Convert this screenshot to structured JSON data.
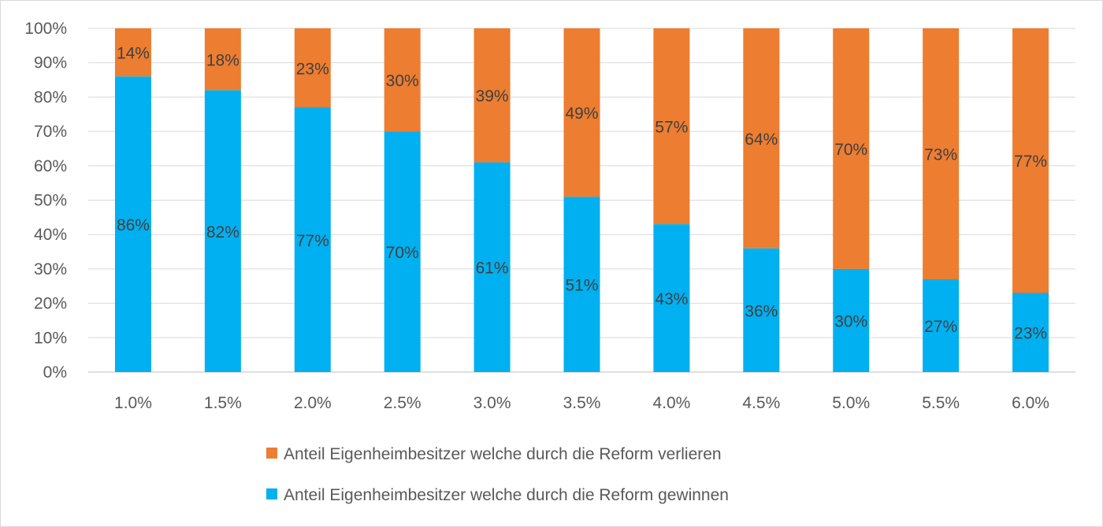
{
  "chart_data": {
    "type": "bar",
    "stacked": true,
    "percent_stacked": true,
    "categories": [
      "1.0%",
      "1.5%",
      "2.0%",
      "2.5%",
      "3.0%",
      "3.5%",
      "4.0%",
      "4.5%",
      "5.0%",
      "5.5%",
      "6.0%"
    ],
    "series": [
      {
        "name": "Anteil Eigenheimbesitzer welche durch die Reform gewinnen",
        "color": "#00b0f0",
        "values": [
          86,
          82,
          77,
          70,
          61,
          51,
          43,
          36,
          30,
          27,
          23
        ],
        "labels": [
          "86%",
          "82%",
          "77%",
          "70%",
          "61%",
          "51%",
          "43%",
          "36%",
          "30%",
          "27%",
          "23%"
        ]
      },
      {
        "name": "Anteil Eigenheimbesitzer welche durch die Reform verlieren",
        "color": "#ed7d31",
        "values": [
          14,
          18,
          23,
          30,
          39,
          49,
          57,
          64,
          70,
          73,
          77
        ],
        "labels": [
          "14%",
          "18%",
          "23%",
          "30%",
          "39%",
          "49%",
          "57%",
          "64%",
          "70%",
          "73%",
          "77%"
        ]
      }
    ],
    "ylim": [
      0,
      100
    ],
    "yticks": [
      "0%",
      "10%",
      "20%",
      "30%",
      "40%",
      "50%",
      "60%",
      "70%",
      "80%",
      "90%",
      "100%"
    ],
    "grid": true,
    "legend": {
      "position": "bottom",
      "order": [
        "Anteil Eigenheimbesitzer welche durch die Reform verlieren",
        "Anteil Eigenheimbesitzer welche durch die Reform gewinnen"
      ]
    },
    "title": "",
    "xlabel": "",
    "ylabel": ""
  },
  "colors": {
    "grid": "#d9d9d9",
    "axis": "#bfbfbf",
    "text": "#595959"
  }
}
